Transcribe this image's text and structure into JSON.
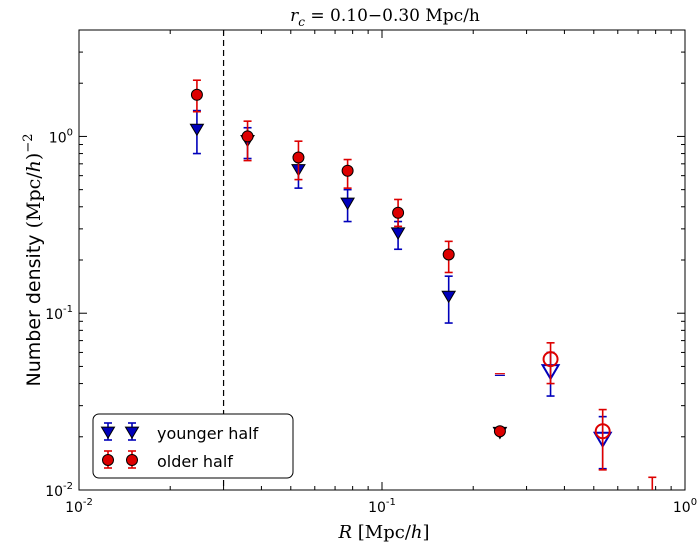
{
  "chart_data": {
    "type": "scatter",
    "title": "r_c = 0.10–0.30 Mpc/h",
    "title_parts": {
      "var": "r",
      "sub": "c",
      "rest": " = 0.10−0.30 Mpc/h"
    },
    "xlabel": "R [Mpc/h]",
    "ylabel": "Number density (Mpc/h)−2",
    "x_scale": "log",
    "y_scale": "log",
    "xlim": [
      0.01,
      1.0
    ],
    "ylim": [
      0.01,
      4.0
    ],
    "x_ticks": [
      {
        "value": 0.01,
        "base": "10",
        "exp": "-2"
      },
      {
        "value": 0.1,
        "base": "10",
        "exp": "-1"
      },
      {
        "value": 1.0,
        "base": "10",
        "exp": "0"
      }
    ],
    "y_ticks": [
      {
        "value": 0.01,
        "base": "10",
        "exp": "-2"
      },
      {
        "value": 0.1,
        "base": "10",
        "exp": "-1"
      },
      {
        "value": 1.0,
        "base": "10",
        "exp": "0"
      }
    ],
    "vline_x": 0.03,
    "legend_position": "lower-left",
    "series": [
      {
        "name": "younger half",
        "color": "#0000bb",
        "marker": "triangle-down",
        "points": [
          {
            "x": 0.0245,
            "y": 1.1,
            "lo": 0.8,
            "hi": 1.4,
            "open": false
          },
          {
            "x": 0.036,
            "y": 0.95,
            "lo": 0.75,
            "hi": 1.12,
            "open": false
          },
          {
            "x": 0.053,
            "y": 0.65,
            "lo": 0.51,
            "hi": 0.76,
            "open": false
          },
          {
            "x": 0.077,
            "y": 0.42,
            "lo": 0.33,
            "hi": 0.5,
            "open": false
          },
          {
            "x": 0.113,
            "y": 0.285,
            "lo": 0.23,
            "hi": 0.33,
            "open": false
          },
          {
            "x": 0.166,
            "y": 0.125,
            "lo": 0.088,
            "hi": 0.162,
            "open": false
          },
          {
            "x": 0.245,
            "y": 0.0212,
            "lo": 0.0212,
            "hi": 0.0212,
            "open": false
          },
          {
            "x": 0.36,
            "y": 0.047,
            "lo": 0.034,
            "hi": 0.06,
            "open": true
          },
          {
            "x": 0.535,
            "y": 0.0195,
            "lo": 0.0132,
            "hi": 0.026,
            "open": true
          }
        ],
        "extra_marks": [
          {
            "x": 0.245,
            "y": 0.0445,
            "kind": "dash"
          }
        ]
      },
      {
        "name": "older half",
        "color": "#dd0000",
        "marker": "circle",
        "points": [
          {
            "x": 0.0245,
            "y": 1.72,
            "lo": 1.38,
            "hi": 2.08,
            "open": false
          },
          {
            "x": 0.036,
            "y": 1.0,
            "lo": 0.73,
            "hi": 1.22,
            "open": false
          },
          {
            "x": 0.053,
            "y": 0.76,
            "lo": 0.57,
            "hi": 0.94,
            "open": false
          },
          {
            "x": 0.077,
            "y": 0.64,
            "lo": 0.51,
            "hi": 0.74,
            "open": false
          },
          {
            "x": 0.113,
            "y": 0.37,
            "lo": 0.31,
            "hi": 0.44,
            "open": false
          },
          {
            "x": 0.166,
            "y": 0.215,
            "lo": 0.17,
            "hi": 0.255,
            "open": false
          },
          {
            "x": 0.245,
            "y": 0.0215,
            "lo": 0.0215,
            "hi": 0.0215,
            "open": false
          },
          {
            "x": 0.36,
            "y": 0.055,
            "lo": 0.04,
            "hi": 0.068,
            "open": true
          },
          {
            "x": 0.535,
            "y": 0.0215,
            "lo": 0.013,
            "hi": 0.0285,
            "open": true
          }
        ],
        "extra_marks": [
          {
            "x": 0.245,
            "y": 0.0455,
            "kind": "dash"
          },
          {
            "x": 0.78,
            "y": 0.0102,
            "hi": 0.0118,
            "kind": "errbar-cap"
          }
        ]
      }
    ]
  }
}
